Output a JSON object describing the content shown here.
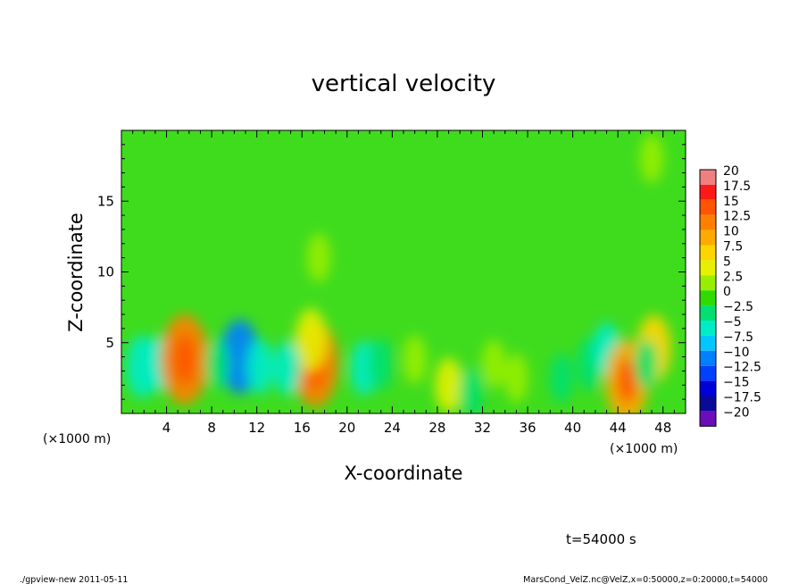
{
  "chart_data": {
    "type": "heatmap",
    "title": "vertical velocity",
    "xlabel": "X-coordinate",
    "ylabel": "Z-coordinate",
    "x_unit_label": "(×1000 m)",
    "y_unit_label": "(×1000 m)",
    "xlim": [
      0,
      50
    ],
    "ylim": [
      0,
      20
    ],
    "x_ticks": [
      "4",
      "8",
      "12",
      "16",
      "20",
      "24",
      "28",
      "32",
      "36",
      "40",
      "44",
      "48"
    ],
    "x_tick_values": [
      4,
      8,
      12,
      16,
      20,
      24,
      28,
      32,
      36,
      40,
      44,
      48
    ],
    "y_ticks": [
      "5",
      "10",
      "15"
    ],
    "y_tick_values": [
      5,
      10,
      15
    ],
    "colorbar": {
      "labels": [
        "20",
        "17.5",
        "15",
        "12.5",
        "10",
        "7.5",
        "5",
        "2.5",
        "0",
        "−2.5",
        "−5",
        "−7.5",
        "−10",
        "−12.5",
        "−15",
        "−17.5",
        "−20"
      ],
      "colors": [
        "#f08080",
        "#ff1a1a",
        "#ff5500",
        "#ff8000",
        "#ffaa00",
        "#ffd500",
        "#e6f000",
        "#99ee00",
        "#2fdc00",
        "#00e070",
        "#00ecc8",
        "#00c8ff",
        "#0080ff",
        "#0040ff",
        "#0000d8",
        "#0a0a9a",
        "#6a0dba"
      ]
    },
    "features": [
      {
        "x": 1.8,
        "z": 3.3,
        "value": -6
      },
      {
        "x": 3.2,
        "z": 3.5,
        "value": -4
      },
      {
        "x": 5.6,
        "z": 3.8,
        "value": 13
      },
      {
        "x": 10.5,
        "z": 4.0,
        "value": -9
      },
      {
        "x": 12.3,
        "z": 3.3,
        "value": -4
      },
      {
        "x": 8.5,
        "z": 3.5,
        "value": -2.5
      },
      {
        "x": 17.2,
        "z": 3.5,
        "value": 12
      },
      {
        "x": 16.8,
        "z": 5.2,
        "value": 6
      },
      {
        "x": 14.7,
        "z": 3.2,
        "value": -4
      },
      {
        "x": 21.5,
        "z": 3.2,
        "value": -4
      },
      {
        "x": 23.0,
        "z": 3.5,
        "value": -3
      },
      {
        "x": 26.0,
        "z": 3.8,
        "value": 2.5
      },
      {
        "x": 29.0,
        "z": 2.0,
        "value": 4
      },
      {
        "x": 33.0,
        "z": 3.5,
        "value": 2.5
      },
      {
        "x": 31.0,
        "z": 1.5,
        "value": -2.5
      },
      {
        "x": 35.0,
        "z": 2.5,
        "value": 2.5
      },
      {
        "x": 39.0,
        "z": 2.5,
        "value": -2.5
      },
      {
        "x": 41.5,
        "z": 3.5,
        "value": -3.5
      },
      {
        "x": 43.0,
        "z": 4.5,
        "value": -4
      },
      {
        "x": 44.8,
        "z": 2.3,
        "value": 11
      },
      {
        "x": 47.2,
        "z": 4.6,
        "value": 7
      },
      {
        "x": 46.5,
        "z": 3.5,
        "value": -2.5
      },
      {
        "x": 17.5,
        "z": 11.0,
        "value": 2.5
      },
      {
        "x": 47.0,
        "z": 18.0,
        "value": 2.5
      }
    ]
  },
  "annotations": {
    "time": "t=54000 s",
    "footer_left": "./gpview-new  2011-05-11",
    "footer_right": "MarsCond_VelZ.nc@VelZ,x=0:50000,z=0:20000,t=54000"
  }
}
